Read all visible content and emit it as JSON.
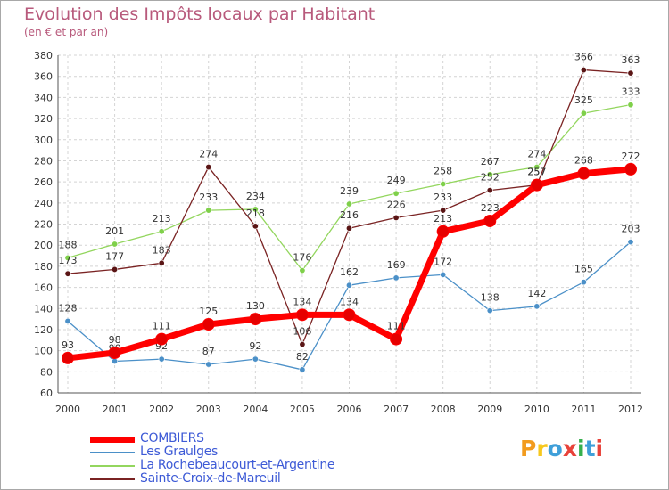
{
  "title": "Evolution des Impôts locaux par Habitant",
  "subtitle": "(en € et par an)",
  "logo": {
    "text": "Proxiti",
    "letter_colors": [
      "#f29b1e",
      "#f7c81e",
      "#3f9fd9",
      "#e8423a",
      "#35b04d",
      "#3f9fd9",
      "#e8423a"
    ]
  },
  "chart_data": {
    "type": "line",
    "x": [
      "2000",
      "2001",
      "2002",
      "2003",
      "2004",
      "2005",
      "2006",
      "2007",
      "2008",
      "2009",
      "2010",
      "2011",
      "2012"
    ],
    "ylim": [
      60,
      380
    ],
    "y_ticks": [
      60,
      80,
      100,
      120,
      140,
      160,
      180,
      200,
      220,
      240,
      260,
      280,
      300,
      320,
      340,
      360,
      380
    ],
    "grid": true,
    "legend": "bottom-left",
    "series": [
      {
        "name": "Les Graulges",
        "color": "#4b90c8",
        "dot": "#4b90c8",
        "values": [
          128,
          90,
          92,
          87,
          92,
          82,
          162,
          169,
          172,
          138,
          142,
          165,
          203
        ],
        "labels": [
          "128",
          "90",
          "92",
          "87",
          "92",
          "82",
          "162",
          "169",
          "172",
          "138",
          "142",
          "165",
          "203"
        ]
      },
      {
        "name": "La Rochebeaucourt-et-Argentine",
        "color": "#93d65e",
        "dot": "#7fd04a",
        "values": [
          188,
          201,
          213,
          233,
          234,
          176,
          239,
          249,
          258,
          267,
          274,
          325,
          333
        ],
        "labels": [
          "188",
          "201",
          "213",
          "233",
          "234",
          "176",
          "239",
          "249",
          "258",
          "267",
          "274",
          "325",
          "333"
        ]
      },
      {
        "name": "Sainte-Croix-de-Mareuil",
        "color": "#7a2323",
        "dot": "#5a1515",
        "values": [
          173,
          177,
          183,
          274,
          218,
          106,
          216,
          226,
          233,
          252,
          257,
          366,
          363
        ],
        "labels": [
          "173",
          "177",
          "183",
          "274",
          "218",
          "106",
          "216",
          "226",
          "233",
          "252",
          "257",
          "366",
          "363"
        ]
      },
      {
        "name": "COMBIERS",
        "color": "#ff0000",
        "dot": "#e60000",
        "values": [
          93,
          98,
          111,
          125,
          130,
          134,
          134,
          111,
          213,
          223,
          257,
          268,
          272
        ],
        "labels": [
          "93",
          "98",
          "111",
          "125",
          "130",
          "134",
          "134",
          "111",
          "213",
          "223",
          "257",
          "268",
          "272"
        ]
      }
    ],
    "legend_order": [
      "COMBIERS",
      "Les Graulges",
      "La Rochebeaucourt-et-Argentine",
      "Sainte-Croix-de-Mareuil"
    ]
  }
}
